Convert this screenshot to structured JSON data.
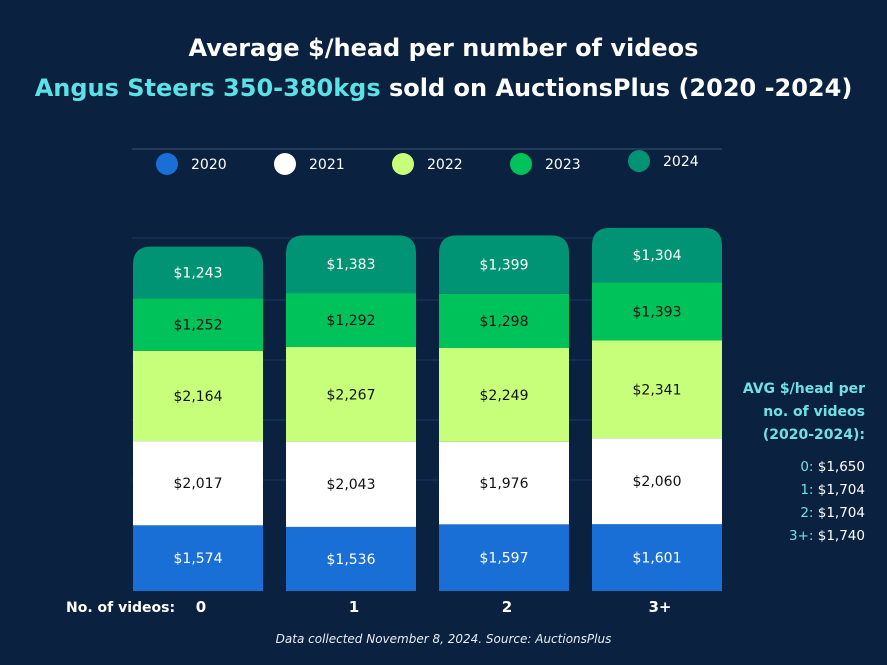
{
  "title_line1": "Average $/head per number of videos",
  "title_line2_highlight": "Angus Steers 350-380kgs",
  "title_line2_rest": " sold on AuctionsPlus (2020 -2024)",
  "xaxis_prefix": "No. of videos:",
  "side_panel": {
    "heading_lines": [
      "AVG $/head per",
      "no. of videos",
      "(2020-2024):"
    ],
    "items": [
      {
        "key": "0:",
        "value": "$1,650"
      },
      {
        "key": "1:",
        "value": "$1,704"
      },
      {
        "key": "2:",
        "value": "$1,704"
      },
      {
        "key": "3+:",
        "value": "$1,740"
      }
    ]
  },
  "source": "Data collected November 8, 2024. Source: AuctionsPlus",
  "chart_data": {
    "type": "bar",
    "stacked": true,
    "categories": [
      "0",
      "1",
      "2",
      "3+"
    ],
    "series": [
      {
        "name": "2020",
        "color": "#1a6fd6",
        "text_color": "#ffffff",
        "values": [
          1574,
          1536,
          1597,
          1601
        ],
        "labels": [
          "$1,574",
          "$1,536",
          "$1,597",
          "$1,601"
        ]
      },
      {
        "name": "2021",
        "color": "#ffffff",
        "text_color": "#111111",
        "values": [
          2017,
          2043,
          1976,
          2060
        ],
        "labels": [
          "$2,017",
          "$2,043",
          "$1,976",
          "$2,060"
        ]
      },
      {
        "name": "2022",
        "color": "#c8ff7a",
        "text_color": "#111111",
        "values": [
          2164,
          2267,
          2249,
          2341
        ],
        "labels": [
          "$2,164",
          "$2,267",
          "$2,249",
          "$2,341"
        ]
      },
      {
        "name": "2023",
        "color": "#00c25a",
        "text_color": "#111111",
        "values": [
          1252,
          1292,
          1298,
          1393
        ],
        "labels": [
          "$1,252",
          "$1,292",
          "$1,298",
          "$1,393"
        ]
      },
      {
        "name": "2024",
        "color": "#009474",
        "text_color": "#ffffff",
        "values": [
          1243,
          1383,
          1399,
          1304
        ],
        "labels": [
          "$1,243",
          "$1,383",
          "$1,399",
          "$1,304"
        ]
      }
    ],
    "legend_position": "top",
    "grid": true
  }
}
